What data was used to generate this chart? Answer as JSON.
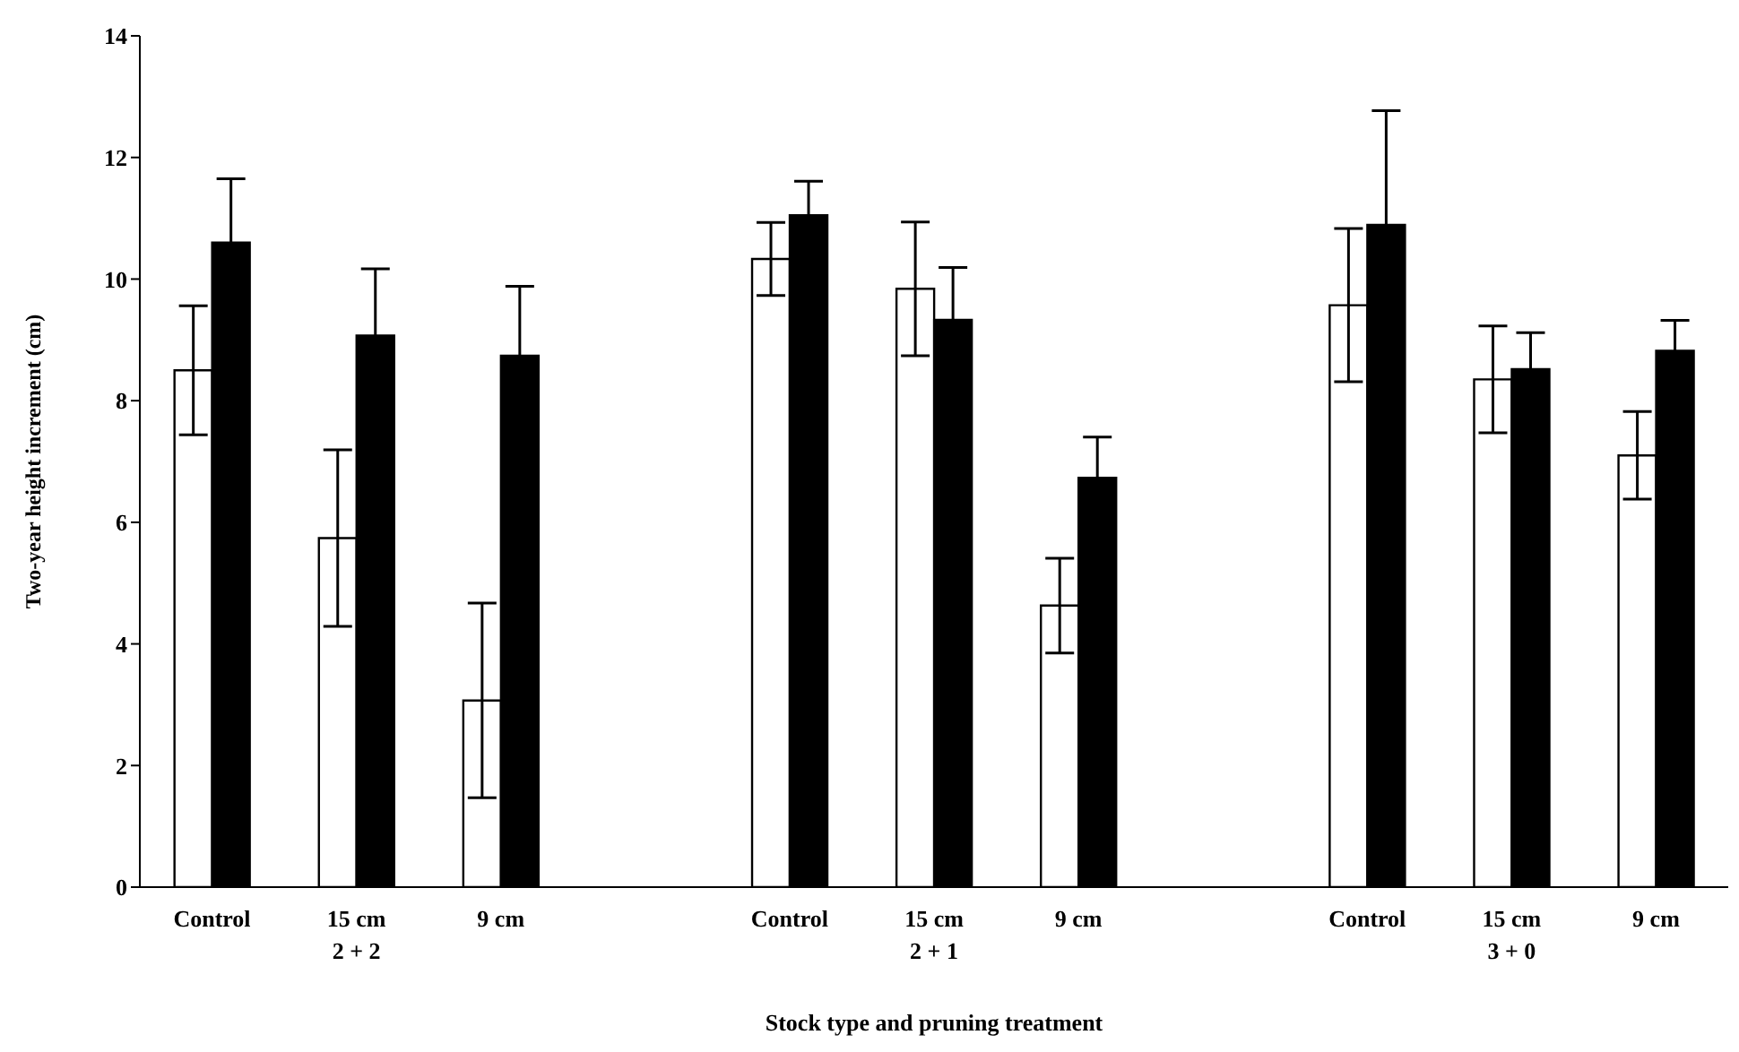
{
  "chart_data": {
    "type": "bar",
    "xlabel": "Stock type and pruning treatment",
    "ylabel": "Two-year height increment (cm)",
    "categories": [
      "Control",
      "15 cm\n2 + 2",
      "9 cm",
      null,
      "Control",
      "15 cm\n2 + 1",
      "9 cm",
      null,
      "Control",
      "15 cm\n3 + 0",
      "9 cm"
    ],
    "series": [
      {
        "color": "#ffffff",
        "values": [
          8.5,
          5.74,
          3.07,
          null,
          10.33,
          9.84,
          4.63,
          null,
          9.57,
          8.35,
          7.1
        ],
        "errors": [
          1.06,
          1.45,
          1.6,
          null,
          0.6,
          1.1,
          0.78,
          null,
          1.26,
          0.88,
          0.72
        ]
      },
      {
        "color": "#000000",
        "values": [
          10.6,
          9.07,
          8.74,
          null,
          11.05,
          9.33,
          6.73,
          null,
          10.89,
          8.52,
          8.82
        ],
        "errors": [
          1.05,
          1.1,
          1.14,
          null,
          0.56,
          0.86,
          0.67,
          null,
          1.88,
          0.6,
          0.5
        ]
      }
    ],
    "ylim": [
      0,
      14
    ],
    "yticks": [
      0,
      2,
      4,
      6,
      8,
      10,
      12,
      14
    ],
    "grid": false,
    "legend": false
  }
}
